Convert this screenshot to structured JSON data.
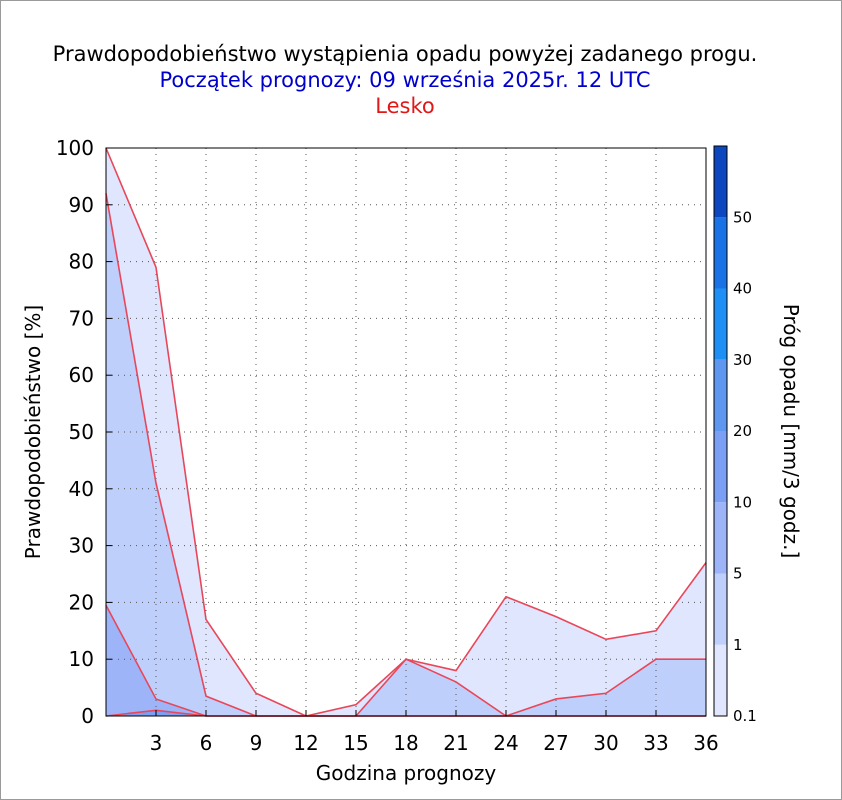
{
  "header": {
    "title": "Prawdopodobieństwo wystąpienia opadu powyżej zadanego progu.",
    "subtitle": "Początek prognozy: 09 września 2025r. 12 UTC",
    "location": "Lesko"
  },
  "colors": {
    "title": "#000000",
    "subtitle": "#0000cc",
    "location": "#e01818",
    "series_line": "#e8475a",
    "threshold_0.1": "#dfe6fd",
    "threshold_1": "#bfcffb",
    "threshold_5": "#9db5f8",
    "threshold_10": "#7a9ff5",
    "threshold_20": "#5f97f0",
    "threshold_30": "#1e90f5",
    "threshold_40": "#1a73e6",
    "threshold_50": "#1057d2",
    "threshold_top": "#0a3ab0"
  },
  "chart_data": {
    "type": "area",
    "title": "Prawdopodobieństwo wystąpienia opadu powyżej zadanego progu.",
    "xlabel": "Godzina prognozy",
    "ylabel": "Prawdopodobieństwo [%]",
    "colorbar_label": "Próg opadu [mm/3 godz.]",
    "xlim": [
      0,
      36
    ],
    "ylim": [
      0,
      100
    ],
    "x": [
      0,
      3,
      6,
      9,
      12,
      15,
      18,
      21,
      24,
      27,
      30,
      33,
      36
    ],
    "x_tick_labels": [
      "3",
      "6",
      "9",
      "12",
      "15",
      "18",
      "21",
      "24",
      "27",
      "30",
      "33",
      "36"
    ],
    "y_tick_labels": [
      "0",
      "10",
      "20",
      "30",
      "40",
      "50",
      "60",
      "70",
      "80",
      "90",
      "100"
    ],
    "grid": true,
    "series": [
      {
        "threshold": "0.1",
        "values": [
          100,
          79,
          17,
          4,
          0,
          2,
          10,
          8,
          21,
          17.5,
          13.5,
          15,
          27
        ]
      },
      {
        "threshold": "1",
        "values": [
          92,
          41,
          3.5,
          0,
          0,
          0,
          10,
          6,
          0,
          3,
          4,
          10,
          10
        ]
      },
      {
        "threshold": "5",
        "values": [
          19.5,
          3,
          0,
          0,
          0,
          0,
          0,
          0,
          0,
          0,
          0,
          0,
          0
        ]
      },
      {
        "threshold": "10",
        "values": [
          0,
          1,
          0,
          0,
          0,
          0,
          0,
          0,
          0,
          0,
          0,
          0,
          0
        ]
      }
    ],
    "colorbar": {
      "tick_labels": [
        "0.1",
        "1",
        "5",
        "10",
        "20",
        "30",
        "40",
        "50"
      ]
    }
  }
}
